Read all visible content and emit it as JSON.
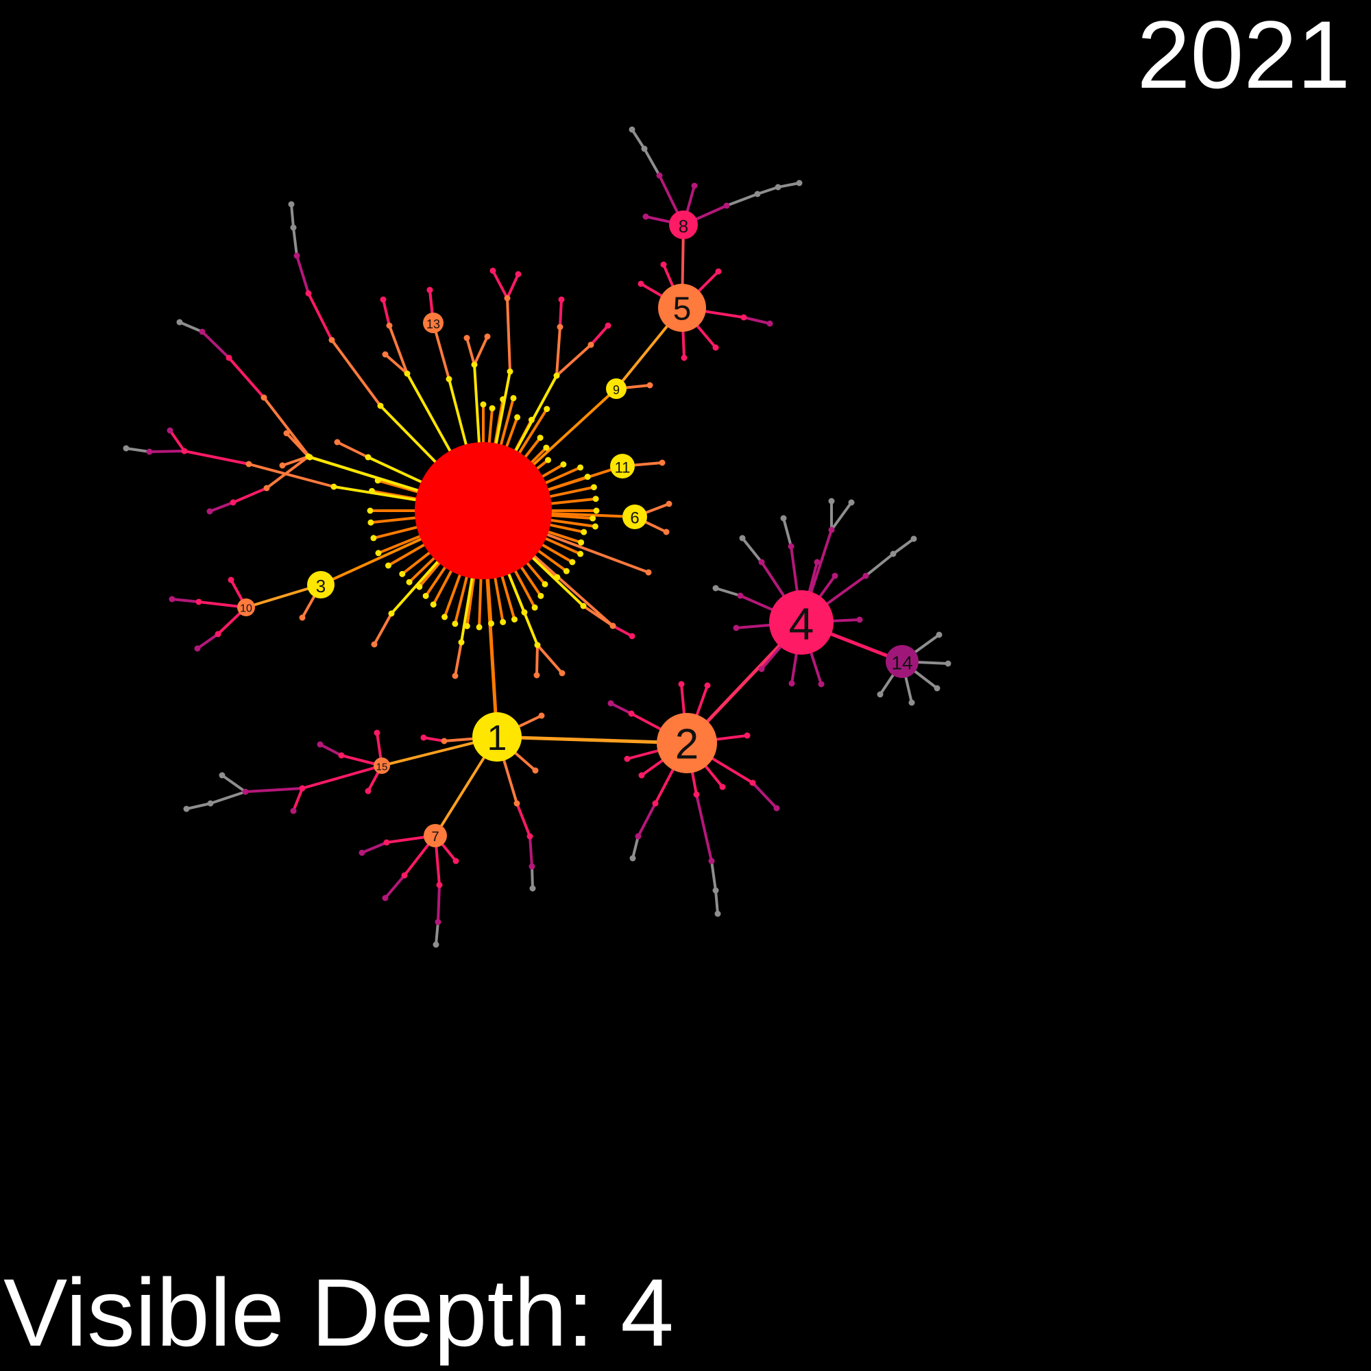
{
  "year": "2021",
  "depth_label": "Visible Depth: 4",
  "colors": {
    "background": "#000000",
    "root": "#ff0000",
    "depth1": "#ffe600",
    "depth2": "#ff7a3d",
    "depth3": "#ff1a66",
    "depth4": "#b5177a",
    "depth5": "#8e8e8e"
  },
  "nodes": [
    {
      "label": "1",
      "color": "#ffe600"
    },
    {
      "label": "2",
      "color": "#ff7a3d"
    },
    {
      "label": "3",
      "color": "#ffe600"
    },
    {
      "label": "4",
      "color": "#ff1a66"
    },
    {
      "label": "5",
      "color": "#ff7a3d"
    },
    {
      "label": "6",
      "color": "#ffe600"
    },
    {
      "label": "7",
      "color": "#ff7a3d"
    },
    {
      "label": "8",
      "color": "#ff1a66"
    },
    {
      "label": "9",
      "color": "#ffe600"
    },
    {
      "label": "10",
      "color": "#ff7a3d"
    },
    {
      "label": "11",
      "color": "#ffe600"
    },
    {
      "label": "13",
      "color": "#ff7a3d"
    },
    {
      "label": "14",
      "color": "#a0177a"
    },
    {
      "label": "15",
      "color": "#ff7a3d"
    }
  ]
}
